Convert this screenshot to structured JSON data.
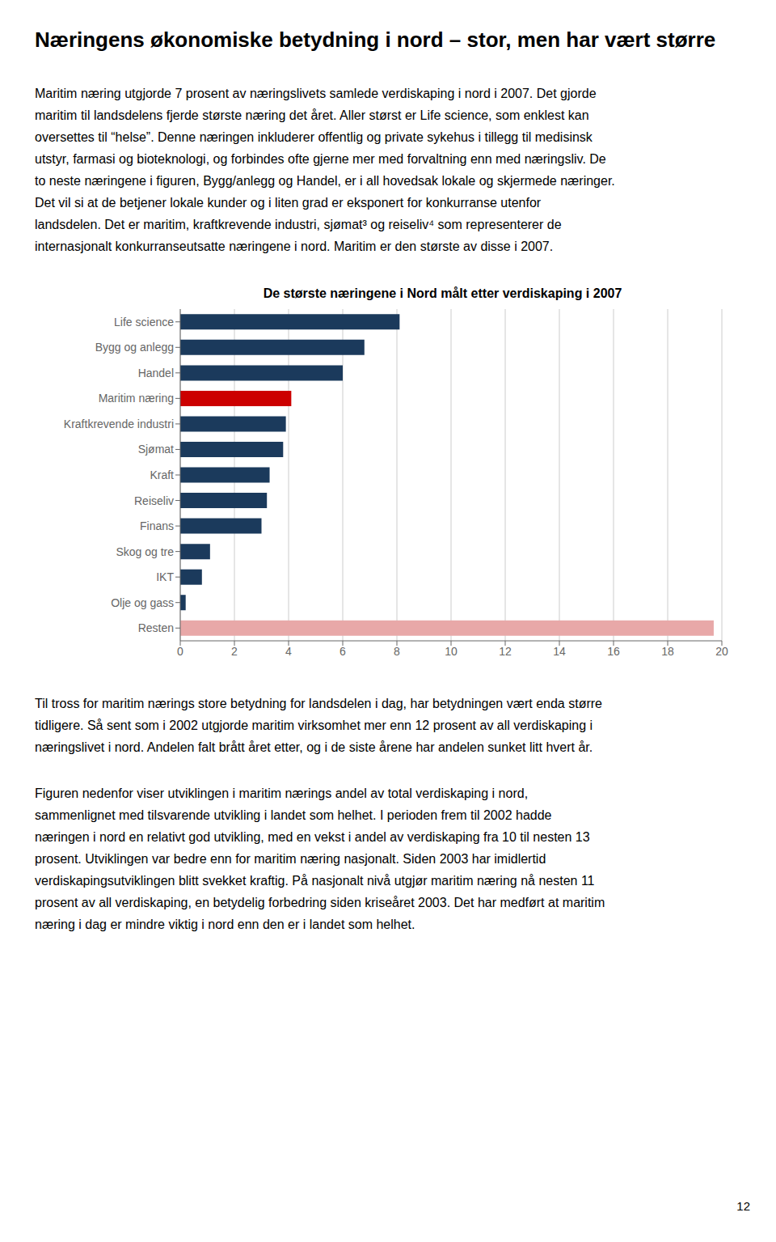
{
  "title": "Næringens økonomiske betydning i nord – stor, men har vært større",
  "paragraphs": [
    [
      "Maritim næring utgjorde 7 prosent av næringslivets samlede verdiskaping i nord i 2007. Det gjorde",
      "maritim til landsdelens fjerde største næring det året. Aller størst er Life science, som enklest kan",
      "oversettes til “helse”. Denne næringen inkluderer offentlig og private sykehus i tillegg til medisinsk",
      "utstyr, farmasi og bioteknologi, og forbindes ofte gjerne mer med forvaltning enn med næringsliv. De",
      "to neste næringene i figuren, Bygg/anlegg og Handel, er i all hovedsak lokale og skjermede næringer.",
      "Det vil si at de betjener lokale kunder og i liten grad er eksponert for konkurranse utenfor",
      "landsdelen. Det er maritim, kraftkrevende industri, sjømat³ og reiseliv⁴ som representerer de",
      "internasjonalt konkurranseutsatte næringene i nord. Maritim er den største av disse i 2007."
    ],
    [
      "Til tross for maritim nærings store betydning for landsdelen i dag, har betydningen vært enda større",
      "tidligere. Så sent som i 2002 utgjorde maritim virksomhet mer enn 12 prosent av all verdiskaping i",
      "næringslivet i nord. Andelen falt brått året etter, og i de siste årene har andelen sunket litt hvert år."
    ],
    [
      "Figuren nedenfor viser utviklingen i maritim nærings andel av total verdiskaping i nord,",
      "sammenlignet med tilsvarende utvikling i landet som helhet. I perioden frem til 2002 hadde",
      "næringen i nord en relativt god utvikling, med en vekst i andel av verdiskaping fra 10 til nesten 13",
      "prosent. Utviklingen var bedre enn for maritim næring nasjonalt. Siden 2003 har imidlertid",
      "verdiskapingsutviklingen blitt svekket kraftig. På nasjonalt nivå utgjør maritim næring nå nesten 11",
      "prosent av all verdiskaping, en betydelig forbedring siden kriseåret 2003. Det har medført at maritim",
      "næring i dag er mindre viktig i nord enn den er i landet som helhet."
    ]
  ],
  "annotations": [
    "12"
  ],
  "chart_data": {
    "type": "bar",
    "orientation": "horizontal",
    "title": "De største næringene i Nord målt etter verdiskaping i 2007",
    "categories": [
      "Life science",
      "Bygg og anlegg",
      "Handel",
      "Maritim næring",
      "Kraftkrevende industri",
      "Sjømat",
      "Kraft",
      "Reiseliv",
      "Finans",
      "Skog og tre",
      "IKT",
      "Olje og gass",
      "Resten"
    ],
    "values": [
      8.1,
      6.8,
      6.0,
      4.1,
      3.9,
      3.8,
      3.3,
      3.2,
      3.0,
      1.1,
      0.8,
      0.2,
      19.7
    ],
    "colors": [
      "#1b3a5c",
      "#1b3a5c",
      "#1b3a5c",
      "#cc0000",
      "#1b3a5c",
      "#1b3a5c",
      "#1b3a5c",
      "#1b3a5c",
      "#1b3a5c",
      "#1b3a5c",
      "#1b3a5c",
      "#1b3a5c",
      "#e8a8a8"
    ],
    "xlim": [
      0,
      20
    ],
    "xticks": [
      0,
      2,
      4,
      6,
      8,
      10,
      12,
      14,
      16,
      18,
      20
    ],
    "grid": true
  }
}
